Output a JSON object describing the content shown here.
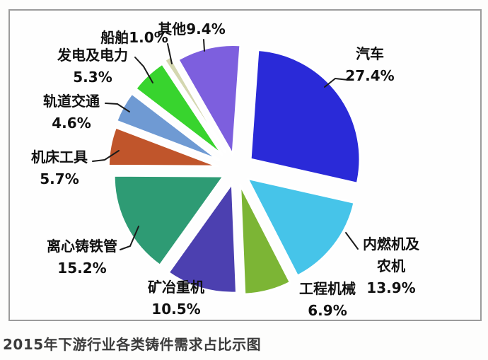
{
  "caption": "2015年下游行业各类铸件需求占比示图",
  "chart_data": {
    "type": "pie",
    "title": "2015年下游行业各类铸件需求占比示图",
    "unit": "percent",
    "direction": "clockwise",
    "start_angle_deg": 4,
    "exploded": true,
    "legend": "none",
    "categories": [
      "汽车",
      "内燃机及农机",
      "工程机械",
      "矿冶重机",
      "离心铸铁管",
      "机床工具",
      "轨道交通",
      "发电及电力",
      "船舶",
      "其他"
    ],
    "values": [
      27.4,
      13.9,
      6.9,
      10.5,
      15.2,
      5.7,
      4.6,
      5.3,
      1.0,
      9.4
    ],
    "colors": [
      "#2a2ad8",
      "#46c4e9",
      "#7cb535",
      "#4c40b0",
      "#2e9b74",
      "#c0552b",
      "#6f9ad3",
      "#38d42e",
      "#d4d7b0",
      "#7d5fde"
    ],
    "display_labels": [
      [
        "汽车",
        "27.4%"
      ],
      [
        "内燃机及",
        "农机",
        "13.9%"
      ],
      [
        "工程机械",
        "6.9%"
      ],
      [
        "矿冶重机",
        "10.5%"
      ],
      [
        "离心铸铁管",
        "15.2%"
      ],
      [
        "机床工具",
        "5.7%"
      ],
      [
        "轨道交通",
        "4.6%"
      ],
      [
        "发电及电力",
        "5.3%"
      ],
      [
        "船舶1.0%"
      ],
      [
        "其他9.4%"
      ]
    ],
    "label_text_color": "#101010",
    "leader_line_color": "#1a1a1a",
    "frame_border_color": "#9b9b9b",
    "background_color": "#fefefe"
  }
}
